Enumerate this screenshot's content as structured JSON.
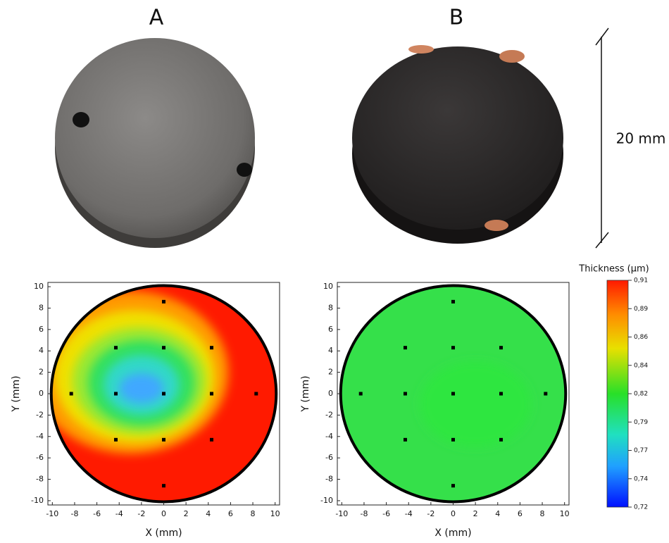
{
  "panel_labels": [
    "A",
    "B"
  ],
  "scale_label": "20 mm",
  "maps": [
    {
      "xlabel": "X (mm)",
      "ylabel": "Y (mm)",
      "xlim": [
        -10.4,
        10.4
      ],
      "ylim": [
        -10.4,
        10.4
      ],
      "xticks": [
        -10,
        -8,
        -6,
        -4,
        -2,
        0,
        2,
        4,
        6,
        8,
        10
      ],
      "yticks": [
        -10,
        -8,
        -6,
        -4,
        -2,
        0,
        2,
        4,
        6,
        8,
        10
      ],
      "points": {
        "x": [
          0,
          -4.3,
          0,
          4.3,
          -8.3,
          -4.3,
          0,
          4.3,
          8.3,
          -4.3,
          0,
          4.3,
          0
        ],
        "y": [
          8.6,
          4.3,
          4.3,
          4.3,
          0,
          0,
          0,
          0,
          0,
          -4.3,
          -4.3,
          -4.3,
          -8.6
        ]
      }
    },
    {
      "xlabel": "X (mm)",
      "ylabel": "Y (mm)",
      "xlim": [
        -10.4,
        10.4
      ],
      "ylim": [
        -10.4,
        10.4
      ],
      "xticks": [
        -10,
        -8,
        -6,
        -4,
        -2,
        0,
        2,
        4,
        6,
        8,
        10
      ],
      "yticks": [
        -10,
        -8,
        -6,
        -4,
        -2,
        0,
        2,
        4,
        6,
        8,
        10
      ],
      "points": {
        "x": [
          0,
          -4.3,
          0,
          4.3,
          -8.3,
          -4.3,
          0,
          4.3,
          8.3,
          -4.3,
          0,
          4.3,
          0
        ],
        "y": [
          8.6,
          4.3,
          4.3,
          4.3,
          0,
          0,
          0,
          0,
          0,
          -4.3,
          -4.3,
          -4.3,
          -8.6
        ]
      }
    }
  ],
  "colorbar": {
    "title": "Thickness  (μm)",
    "lim": [
      0.72,
      0.91
    ],
    "ticks": [
      {
        "value": 0.91,
        "label": "0,91"
      },
      {
        "value": 0.88625,
        "label": "0,89"
      },
      {
        "value": 0.8625,
        "label": "0,86"
      },
      {
        "value": 0.83875,
        "label": "0,84"
      },
      {
        "value": 0.815,
        "label": "0,82"
      },
      {
        "value": 0.79125,
        "label": "0,79"
      },
      {
        "value": 0.7675,
        "label": "0,77"
      },
      {
        "value": 0.74375,
        "label": "0,74"
      },
      {
        "value": 0.72,
        "label": "0,72"
      }
    ]
  }
}
